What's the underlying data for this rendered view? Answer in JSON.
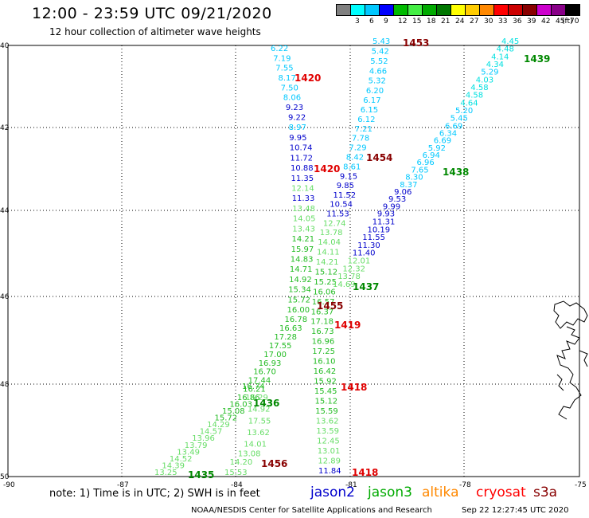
{
  "header": {
    "title": "12:00 - 23:59 UTC 09/21/2020",
    "subtitle": "12 hour collection of altimeter wave heights"
  },
  "legend": {
    "unit_label": "(ft)",
    "bins": [
      {
        "label": "",
        "color": "#808080"
      },
      {
        "label": "3",
        "color": "#00ffff"
      },
      {
        "label": "6",
        "color": "#00c8ff"
      },
      {
        "label": "9",
        "color": "#0000ff"
      },
      {
        "label": "12",
        "color": "#00bb00"
      },
      {
        "label": "15",
        "color": "#44ee44"
      },
      {
        "label": "18",
        "color": "#00aa00"
      },
      {
        "label": "21",
        "color": "#007700"
      },
      {
        "label": "24",
        "color": "#ffff00"
      },
      {
        "label": "27",
        "color": "#ffcc00"
      },
      {
        "label": "30",
        "color": "#ff8800"
      },
      {
        "label": "33",
        "color": "#ff0000"
      },
      {
        "label": "36",
        "color": "#cc0000"
      },
      {
        "label": "39",
        "color": "#880000"
      },
      {
        "label": "42",
        "color": "#cc00cc"
      },
      {
        "label": "45",
        "color": "#880088"
      },
      {
        "label": "70",
        "color": "#000000"
      }
    ]
  },
  "axes": {
    "lon_labels": [
      "-90",
      "-87",
      "-84",
      "-81",
      "-78",
      "-75"
    ],
    "lat_labels": [
      "40",
      "42",
      "44",
      "46",
      "48",
      "50"
    ]
  },
  "footer": {
    "note": "note: 1) Time is in UTC; 2) SWH is in feet",
    "satellites": [
      {
        "name": "jason2",
        "color": "#0000cc"
      },
      {
        "name": "jason3",
        "color": "#00aa00"
      },
      {
        "name": "altika",
        "color": "#ff8800"
      },
      {
        "name": "cryosat",
        "color": "#ff0000"
      },
      {
        "name": "s3a",
        "color": "#880000"
      }
    ],
    "credit": "NOAA/NESDIS Center for Satellite Applications and Research",
    "timestamp": "Sep 22 12:27:45 UTC 2020"
  },
  "tracks": [
    {
      "id": "track-a",
      "time_label": "1420",
      "time_color": "#e00000",
      "points": [
        {
          "v": "6.22",
          "c": "#00c8ff"
        },
        {
          "v": "7.19",
          "c": "#00c8ff"
        },
        {
          "v": "7.55",
          "c": "#00c8ff"
        },
        {
          "v": "8.17",
          "c": "#00c8ff"
        },
        {
          "v": "7.50",
          "c": "#00c8ff"
        },
        {
          "v": "8.06",
          "c": "#00c8ff"
        },
        {
          "v": "9.23",
          "c": "#0000cc"
        },
        {
          "v": "9.22",
          "c": "#0000cc"
        },
        {
          "v": "8.97",
          "c": "#00c8ff"
        },
        {
          "v": "9.95",
          "c": "#0000cc"
        },
        {
          "v": "10.74",
          "c": "#0000cc"
        },
        {
          "v": "11.72",
          "c": "#0000cc"
        },
        {
          "v": "10.88",
          "c": "#0000cc"
        },
        {
          "v": "11.35",
          "c": "#0000cc"
        },
        {
          "v": "12.14",
          "c": "#66dd66"
        },
        {
          "v": "11.33",
          "c": "#0000cc"
        },
        {
          "v": "13.48",
          "c": "#66dd66"
        },
        {
          "v": "14.05",
          "c": "#66dd66"
        },
        {
          "v": "13.43",
          "c": "#66dd66"
        },
        {
          "v": "14.21",
          "c": "#22bb22"
        },
        {
          "v": "15.97",
          "c": "#22bb22"
        },
        {
          "v": "14.83",
          "c": "#22bb22"
        },
        {
          "v": "14.71",
          "c": "#22bb22"
        },
        {
          "v": "14.92",
          "c": "#22bb22"
        },
        {
          "v": "15.34",
          "c": "#22bb22"
        },
        {
          "v": "15.72",
          "c": "#22bb22"
        },
        {
          "v": "16.00",
          "c": "#22bb22"
        },
        {
          "v": "16.78",
          "c": "#22bb22"
        },
        {
          "v": "16.63",
          "c": "#22bb22"
        },
        {
          "v": "17.28",
          "c": "#22bb22"
        },
        {
          "v": "17.55",
          "c": "#22bb22"
        },
        {
          "v": "17.00",
          "c": "#22bb22"
        },
        {
          "v": "16.93",
          "c": "#22bb22"
        },
        {
          "v": "16.70",
          "c": "#22bb22"
        },
        {
          "v": "17.44",
          "c": "#22bb22"
        },
        {
          "v": "16.21",
          "c": "#22bb22"
        },
        {
          "v": "16.86",
          "c": "#22bb22"
        },
        {
          "v": "16.03",
          "c": "#22bb22"
        },
        {
          "v": "15.08",
          "c": "#22bb22"
        },
        {
          "v": "15.72",
          "c": "#22bb22"
        },
        {
          "v": "14.29",
          "c": "#66dd66"
        },
        {
          "v": "14.57",
          "c": "#66dd66"
        },
        {
          "v": "13.96",
          "c": "#66dd66"
        },
        {
          "v": "13.79",
          "c": "#66dd66"
        },
        {
          "v": "13.49",
          "c": "#66dd66"
        },
        {
          "v": "14.52",
          "c": "#66dd66"
        },
        {
          "v": "14.39",
          "c": "#66dd66"
        },
        {
          "v": "13.25",
          "c": "#66dd66"
        }
      ]
    },
    {
      "id": "track-b",
      "time_label": "1453",
      "time_color": "#880000",
      "points": [
        {
          "v": "5.43",
          "c": "#00c8ff"
        },
        {
          "v": "5.42",
          "c": "#00c8ff"
        },
        {
          "v": "5.52",
          "c": "#00c8ff"
        },
        {
          "v": "4.66",
          "c": "#00c8ff"
        },
        {
          "v": "5.32",
          "c": "#00c8ff"
        },
        {
          "v": "6.20",
          "c": "#00c8ff"
        },
        {
          "v": "6.17",
          "c": "#00c8ff"
        },
        {
          "v": "6.15",
          "c": "#00c8ff"
        },
        {
          "v": "6.12",
          "c": "#00c8ff"
        },
        {
          "v": "7.21",
          "c": "#00c8ff"
        },
        {
          "v": "7.78",
          "c": "#00c8ff"
        },
        {
          "v": "7.29",
          "c": "#00c8ff"
        },
        {
          "v": "8.42",
          "c": "#00c8ff"
        },
        {
          "v": "8.61",
          "c": "#00c8ff"
        },
        {
          "v": "9.15",
          "c": "#0000cc"
        },
        {
          "v": "9.85",
          "c": "#0000cc"
        },
        {
          "v": "11.52",
          "c": "#0000cc"
        },
        {
          "v": "10.54",
          "c": "#0000cc"
        },
        {
          "v": "11.53",
          "c": "#0000cc"
        },
        {
          "v": "12.74",
          "c": "#66dd66"
        },
        {
          "v": "13.78",
          "c": "#66dd66"
        },
        {
          "v": "14.04",
          "c": "#66dd66"
        },
        {
          "v": "14.11",
          "c": "#66dd66"
        },
        {
          "v": "14.21",
          "c": "#66dd66"
        },
        {
          "v": "15.12",
          "c": "#22bb22"
        },
        {
          "v": "15.25",
          "c": "#22bb22"
        },
        {
          "v": "16.06",
          "c": "#22bb22"
        },
        {
          "v": "16.57",
          "c": "#22bb22"
        },
        {
          "v": "16.37",
          "c": "#22bb22"
        },
        {
          "v": "17.18",
          "c": "#22bb22"
        },
        {
          "v": "16.73",
          "c": "#22bb22"
        },
        {
          "v": "16.96",
          "c": "#22bb22"
        },
        {
          "v": "17.25",
          "c": "#22bb22"
        },
        {
          "v": "16.10",
          "c": "#22bb22"
        },
        {
          "v": "16.42",
          "c": "#22bb22"
        },
        {
          "v": "15.92",
          "c": "#22bb22"
        },
        {
          "v": "15.45",
          "c": "#22bb22"
        },
        {
          "v": "15.12",
          "c": "#22bb22"
        },
        {
          "v": "15.59",
          "c": "#22bb22"
        },
        {
          "v": "13.62",
          "c": "#66dd66"
        },
        {
          "v": "13.59",
          "c": "#66dd66"
        },
        {
          "v": "12.45",
          "c": "#66dd66"
        },
        {
          "v": "13.01",
          "c": "#66dd66"
        },
        {
          "v": "12.89",
          "c": "#66dd66"
        },
        {
          "v": "11.84",
          "c": "#0000cc"
        }
      ]
    },
    {
      "id": "track-c",
      "time_label": "1439",
      "time_color": "#008800",
      "points": [
        {
          "v": "4.45",
          "c": "#00e0e0"
        },
        {
          "v": "4.48",
          "c": "#00e0e0"
        },
        {
          "v": "4.14",
          "c": "#00e0e0"
        },
        {
          "v": "4.34",
          "c": "#00e0e0"
        },
        {
          "v": "5.29",
          "c": "#00c8ff"
        },
        {
          "v": "4.03",
          "c": "#00e0e0"
        },
        {
          "v": "4.58",
          "c": "#00e0e0"
        },
        {
          "v": "4.58",
          "c": "#00e0e0"
        },
        {
          "v": "4.64",
          "c": "#00e0e0"
        },
        {
          "v": "5.20",
          "c": "#00c8ff"
        },
        {
          "v": "5.45",
          "c": "#00c8ff"
        },
        {
          "v": "6.69",
          "c": "#00c8ff"
        },
        {
          "v": "6.34",
          "c": "#00c8ff"
        },
        {
          "v": "6.69",
          "c": "#00c8ff"
        },
        {
          "v": "5.92",
          "c": "#00c8ff"
        },
        {
          "v": "6.94",
          "c": "#00c8ff"
        },
        {
          "v": "6.96",
          "c": "#00c8ff"
        },
        {
          "v": "7.65",
          "c": "#00c8ff"
        },
        {
          "v": "8.30",
          "c": "#00c8ff"
        },
        {
          "v": "8.37",
          "c": "#00c8ff"
        },
        {
          "v": "9.06",
          "c": "#0000cc"
        },
        {
          "v": "9.53",
          "c": "#0000cc"
        },
        {
          "v": "9.99",
          "c": "#0000cc"
        },
        {
          "v": "9.93",
          "c": "#0000cc"
        },
        {
          "v": "11.31",
          "c": "#0000cc"
        },
        {
          "v": "10.19",
          "c": "#0000cc"
        },
        {
          "v": "11.55",
          "c": "#0000cc"
        },
        {
          "v": "11.30",
          "c": "#0000cc"
        },
        {
          "v": "11.40",
          "c": "#0000cc"
        },
        {
          "v": "12.01",
          "c": "#66dd66"
        },
        {
          "v": "12.32",
          "c": "#66dd66"
        },
        {
          "v": "13.78",
          "c": "#66dd66"
        },
        {
          "v": "14.69",
          "c": "#66dd66"
        }
      ]
    },
    {
      "id": "track-d",
      "time_label": "1436",
      "time_color": "#008800",
      "points": [
        {
          "v": "16.74",
          "c": "#22bb22"
        },
        {
          "v": "16.29",
          "c": "#66dd66"
        },
        {
          "v": "14.92",
          "c": "#66dd66"
        },
        {
          "v": "17.55",
          "c": "#66dd66"
        },
        {
          "v": "13.62",
          "c": "#66dd66"
        },
        {
          "v": "14.01",
          "c": "#66dd66"
        },
        {
          "v": "13.08",
          "c": "#66dd66"
        },
        {
          "v": "14.20",
          "c": "#66dd66"
        },
        {
          "v": "15.53",
          "c": "#66dd66"
        }
      ]
    }
  ],
  "time_marks": [
    {
      "label": "1420",
      "color": "#e00000"
    },
    {
      "label": "1454",
      "color": "#880000"
    },
    {
      "label": "1438",
      "color": "#008800"
    },
    {
      "label": "1437",
      "color": "#008800"
    },
    {
      "label": "1455",
      "color": "#880000"
    },
    {
      "label": "1419",
      "color": "#e00000"
    },
    {
      "label": "1418",
      "color": "#e00000"
    },
    {
      "label": "1456",
      "color": "#880000"
    },
    {
      "label": "1435",
      "color": "#008800"
    },
    {
      "label": "1418",
      "color": "#e00000"
    }
  ]
}
